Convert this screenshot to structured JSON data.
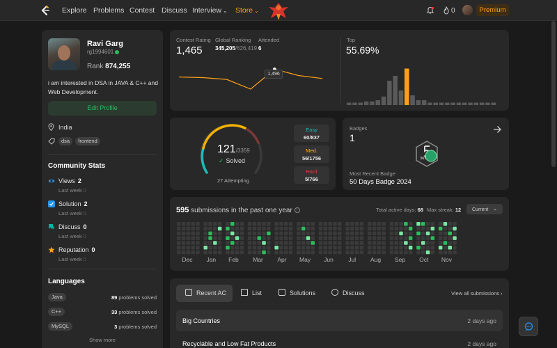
{
  "nav": {
    "items": [
      "Explore",
      "Problems",
      "Contest",
      "Discuss",
      "Interview",
      "Store"
    ],
    "streak": "0",
    "premium": "Premium"
  },
  "profile": {
    "name": "Ravi Garg",
    "username": "rg1994601",
    "rank_label": "Rank",
    "rank_value": "874,255",
    "bio": "i am interested in DSA in JAVA & C++ and Web Development.",
    "edit_label": "Edit Profile",
    "location": "India",
    "tags": [
      "dsa",
      "frontend"
    ]
  },
  "community": {
    "title": "Community Stats",
    "stats": [
      {
        "label": "Views",
        "value": "2",
        "week_label": "Last week",
        "week_value": "0",
        "icon": "eye-icon",
        "color": "#2196f3"
      },
      {
        "label": "Solution",
        "value": "2",
        "week_label": "Last week",
        "week_value": "0",
        "icon": "solution-icon",
        "color": "#2196f3"
      },
      {
        "label": "Discuss",
        "value": "0",
        "week_label": "Last week",
        "week_value": "0",
        "icon": "discuss-icon",
        "color": "#00b8a3"
      },
      {
        "label": "Reputation",
        "value": "0",
        "week_label": "Last week",
        "week_value": "0",
        "icon": "star-icon",
        "color": "#ffa116"
      }
    ]
  },
  "languages": {
    "title": "Languages",
    "items": [
      {
        "name": "Java",
        "count": "89",
        "suffix": "problems solved"
      },
      {
        "name": "C++",
        "count": "33",
        "suffix": "problems solved"
      },
      {
        "name": "MySQL",
        "count": "3",
        "suffix": "problems solved"
      }
    ],
    "show_more": "Show more"
  },
  "contest": {
    "rating_label": "Contest Rating",
    "rating": "1,465",
    "global_label": "Global Ranking",
    "global_rank": "345,205",
    "global_total": "/626,419",
    "attended_label": "Attended",
    "attended": "6",
    "tooltip": "1,496",
    "top_label": "Top",
    "top_value": "55.69%",
    "rating_line": [
      1470,
      1468,
      1462,
      1430,
      1496,
      1475,
      1465
    ],
    "histogram": [
      2,
      2,
      2,
      3,
      3,
      4,
      7,
      20,
      24,
      12,
      30,
      8,
      4,
      4,
      2,
      2,
      2,
      2,
      2,
      2,
      2,
      2,
      2,
      2,
      2,
      2
    ],
    "highlight_index": 10,
    "accent": "#ffa116"
  },
  "solved": {
    "count": "121",
    "total": "/3359",
    "label": "Solved",
    "attempting": "27 Attempting",
    "difficulties": [
      {
        "name": "Easy",
        "value": "60/837",
        "color": "#1cbaba"
      },
      {
        "name": "Med.",
        "value": "56/1756",
        "color": "#ffb700"
      },
      {
        "name": "Hard",
        "value": "5/766",
        "color": "#f63737"
      }
    ]
  },
  "badges": {
    "label": "Badges",
    "count": "1",
    "recent_label": "Most Recent Badge",
    "recent_name": "50 Days Badge 2024",
    "badge_text": "365"
  },
  "submissions": {
    "count": "595",
    "text": "submissions in the past one year",
    "active_label": "Total active days:",
    "active_days": "68",
    "streak_label": "Max streak:",
    "max_streak": "12",
    "filter": "Current",
    "months": [
      "Dec",
      "Jan",
      "Feb",
      "Mar",
      "Apr",
      "May",
      "Jun",
      "Jul",
      "Aug",
      "Sep",
      "Oct",
      "Nov"
    ]
  },
  "recent": {
    "tabs": [
      "Recent AC",
      "List",
      "Solutions",
      "Discuss"
    ],
    "view_all": "View all submissions",
    "rows": [
      {
        "title": "Big Countries",
        "time": "2 days ago"
      },
      {
        "title": "Recyclable and Low Fat Products",
        "time": "2 days ago"
      }
    ]
  }
}
